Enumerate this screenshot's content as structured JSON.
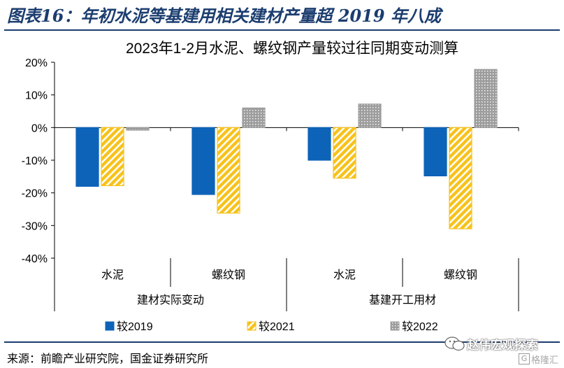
{
  "figure": {
    "title": "图表16：年初水泥等基建用相关建材产量超 2019 年八成",
    "source": "来源：前瞻产业研究院，国金证券研究所"
  },
  "watermark": {
    "name": "赵伟宏观探索",
    "sub": "格隆汇",
    "badge": "G"
  },
  "chart_data": {
    "type": "bar",
    "title": "2023年1-2月水泥、螺纹钢产量较过往同期变动测算",
    "categories": [
      "水泥",
      "螺纹钢",
      "水泥",
      "螺纹钢"
    ],
    "groups": [
      {
        "label": "建材实际变动",
        "categories": [
          "水泥",
          "螺纹钢"
        ]
      },
      {
        "label": "基建开工用材",
        "categories": [
          "水泥",
          "螺纹钢"
        ]
      }
    ],
    "series": [
      {
        "name": "较2019",
        "values": [
          -18,
          -20.5,
          -10,
          -14.8
        ],
        "color": "#0d63b8",
        "pattern": "solid"
      },
      {
        "name": "较2021",
        "values": [
          -17.8,
          -26.2,
          -15.5,
          -31
        ],
        "color": "#f7c21a",
        "pattern": "hatch"
      },
      {
        "name": "较2022",
        "values": [
          -0.8,
          6,
          7.2,
          17.8
        ],
        "color": "#9d9d9d",
        "pattern": "dots"
      }
    ],
    "ylim": [
      -40,
      20
    ],
    "yticks": [
      -40,
      -30,
      -20,
      -10,
      0,
      10,
      20
    ],
    "ytick_labels": [
      "-40%",
      "-30%",
      "-20%",
      "-10%",
      "0%",
      "10%",
      "20%"
    ],
    "grid": false,
    "legend": "bottom"
  }
}
